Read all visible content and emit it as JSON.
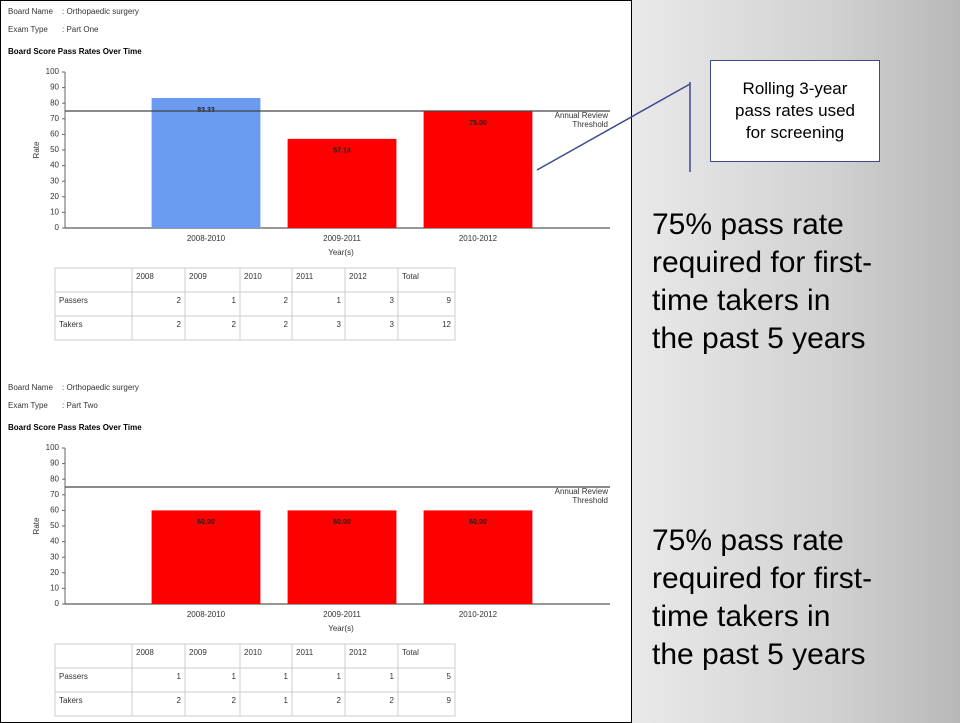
{
  "chart_data": [
    {
      "type": "bar",
      "board_name_label": "Board Name",
      "board_name": ": Orthopaedic surgery",
      "exam_type_label": "Exam Type",
      "exam_type": ": Part One",
      "title": "Board Score Pass Rates Over Time",
      "categories": [
        "2008-2010",
        "2009-2011",
        "2010-2012"
      ],
      "values": [
        83.33,
        57.14,
        75
      ],
      "value_labels": [
        "83.33",
        "57.14",
        "75.00"
      ],
      "colors": [
        "#6b9bf0",
        "#ff0000",
        "#ff0000"
      ],
      "ylim": [
        0,
        100
      ],
      "yticks": [
        0,
        10,
        20,
        30,
        40,
        50,
        60,
        70,
        80,
        90,
        100
      ],
      "ylabel": "Rate",
      "xlabel": "Year(s)",
      "threshold": 75,
      "threshold_label": [
        "Annual Review",
        "Threshold"
      ],
      "table": {
        "columns": [
          "2008",
          "2009",
          "2010",
          "2011",
          "2012",
          "Total"
        ],
        "rows": [
          [
            "Passers",
            2,
            1,
            2,
            1,
            3,
            9
          ],
          [
            "Takers",
            2,
            2,
            2,
            3,
            3,
            12
          ]
        ]
      }
    },
    {
      "type": "bar",
      "board_name_label": "Board Name",
      "board_name": ": Orthopaedic surgery",
      "exam_type_label": "Exam Type",
      "exam_type": ": Part Two",
      "title": "Board Score Pass Rates Over Time",
      "categories": [
        "2008-2010",
        "2009-2011",
        "2010-2012"
      ],
      "values": [
        60,
        60,
        60
      ],
      "value_labels": [
        "60.00",
        "60.00",
        "60.00"
      ],
      "colors": [
        "#ff0000",
        "#ff0000",
        "#ff0000"
      ],
      "ylim": [
        0,
        100
      ],
      "yticks": [
        0,
        10,
        20,
        30,
        40,
        50,
        60,
        70,
        80,
        90,
        100
      ],
      "ylabel": "Rate",
      "xlabel": "Year(s)",
      "threshold": 75,
      "threshold_label": [
        "Annual Review",
        "Threshold"
      ],
      "table": {
        "columns": [
          "2008",
          "2009",
          "2010",
          "2011",
          "2012",
          "Total"
        ],
        "rows": [
          [
            "Passers",
            1,
            1,
            1,
            1,
            1,
            5
          ],
          [
            "Takers",
            2,
            2,
            1,
            2,
            2,
            9
          ]
        ]
      }
    }
  ],
  "callout": [
    "Rolling 3-year",
    "pass rates used",
    "for screening"
  ],
  "notes": [
    [
      "75% pass rate",
      "required for first-",
      "time takers in",
      "the past 5 years"
    ],
    [
      "75% pass rate",
      "required for first-",
      "time takers in",
      "the past 5 years"
    ]
  ]
}
